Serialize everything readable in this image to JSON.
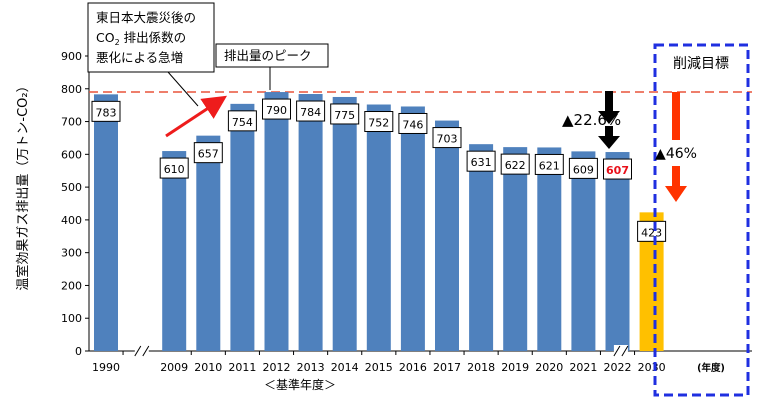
{
  "chart_data": {
    "type": "bar",
    "ylabel": "温室効果ガス排出量（万トン-CO₂）",
    "ylim": [
      0,
      900
    ],
    "yticks": [
      0,
      100,
      200,
      300,
      400,
      500,
      600,
      700,
      800,
      900
    ],
    "grid": false,
    "categories": [
      "1990",
      "2009",
      "2010",
      "2011",
      "2012",
      "2013",
      "2014",
      "2015",
      "2016",
      "2017",
      "2018",
      "2019",
      "2020",
      "2021",
      "2022"
    ],
    "values": [
      783,
      610,
      657,
      754,
      790,
      784,
      775,
      752,
      746,
      703,
      631,
      622,
      621,
      609,
      607
    ],
    "value_labels": [
      "783",
      "610",
      "657",
      "754",
      "790",
      "784",
      "775",
      "752",
      "746",
      "703",
      "631",
      "622",
      "621",
      "609",
      "607"
    ],
    "highlight_value_index": 14,
    "target": {
      "category": "2030",
      "value": 423,
      "label": "423",
      "unit": "(年度)"
    },
    "xlabel_base": "＜基準年度＞",
    "reference_line": {
      "value": 790
    },
    "annotations": {
      "disaster_line1": "東日本大震災後の",
      "disaster_line2_prefix": "CO",
      "disaster_line2_sub": "2",
      "disaster_line2_suffix": " 排出係数の",
      "disaster_line3": "悪化による急増",
      "peak": "排出量のピーク",
      "reduction_2022": "▲22.6%",
      "reduction_target": "▲46%",
      "target_title": "削減目標"
    },
    "colors": {
      "bar": "#4f81bd",
      "target_bar": "#ffc000",
      "highlight_label": "#e8101a",
      "reference_line": "#e8533a",
      "arrow_red": "#ee1c1c",
      "arrow_orange": "#ff3300",
      "frame": "#1f2fe0"
    }
  }
}
